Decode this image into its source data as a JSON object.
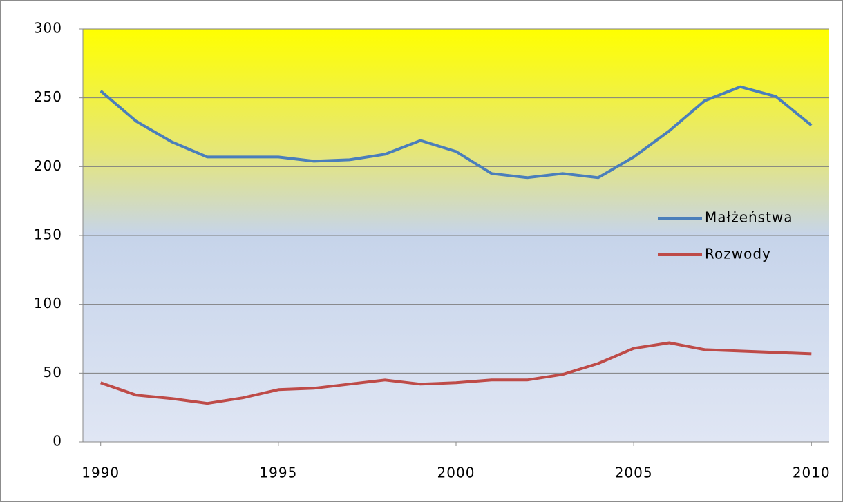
{
  "chart_data": {
    "type": "line",
    "x": [
      1990,
      1991,
      1992,
      1993,
      1994,
      1995,
      1996,
      1997,
      1998,
      1999,
      2000,
      2001,
      2002,
      2003,
      2004,
      2005,
      2006,
      2007,
      2008,
      2009,
      2010
    ],
    "series": [
      {
        "name": "Małżeństwa",
        "color": "#4a7ebb",
        "values": [
          255,
          233,
          218,
          207,
          207,
          207,
          204,
          205,
          209,
          219,
          211,
          195,
          192,
          195,
          192,
          207,
          226,
          248,
          258,
          251,
          230
        ]
      },
      {
        "name": "Rozwody",
        "color": "#be4b48",
        "values": [
          43,
          34,
          31.5,
          28,
          32,
          38,
          39,
          42,
          45,
          42,
          43,
          45,
          45,
          49,
          57,
          68,
          72,
          67,
          66,
          65,
          64
        ]
      }
    ],
    "xlim": [
      1989.5,
      2010.5
    ],
    "xticks": [
      1990,
      1995,
      2000,
      2005,
      2010
    ],
    "ylim": [
      0,
      300
    ],
    "yticks": [
      0,
      50,
      100,
      150,
      200,
      250,
      300
    ],
    "grid": true,
    "legend": "right"
  }
}
